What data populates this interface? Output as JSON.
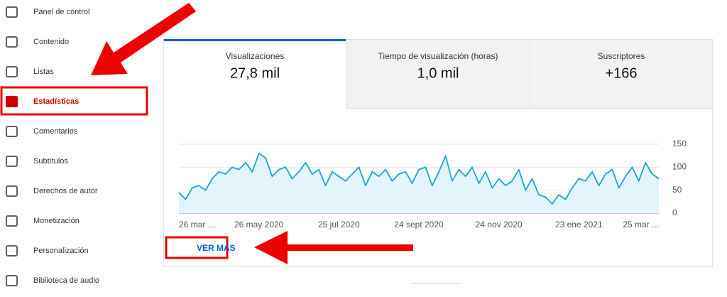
{
  "sidebar": {
    "items": [
      {
        "label": "Panel de control"
      },
      {
        "label": "Contenido"
      },
      {
        "label": "Listas"
      },
      {
        "label": "Estadísticas"
      },
      {
        "label": "Comentarios"
      },
      {
        "label": "Subtítulos"
      },
      {
        "label": "Derechos de autor"
      },
      {
        "label": "Monetización"
      },
      {
        "label": "Personalización"
      },
      {
        "label": "Biblioteca de audio"
      }
    ],
    "active": 3
  },
  "tabs": [
    {
      "label": "Visualizaciones",
      "value": "27,8 mil"
    },
    {
      "label": "Tiempo de visualización (horas)",
      "value": "1,0 mil"
    },
    {
      "label": "Suscriptores",
      "value": "+166"
    }
  ],
  "button": "VER MÁS",
  "chart_data": {
    "type": "line",
    "categories": [
      "26 mar ...",
      null,
      null,
      null,
      null,
      null,
      null,
      null,
      null,
      null,
      null,
      null,
      "26 may 2020",
      null,
      null,
      null,
      null,
      null,
      null,
      null,
      null,
      null,
      null,
      null,
      "25 jul 2020",
      null,
      null,
      null,
      null,
      null,
      null,
      null,
      null,
      null,
      null,
      null,
      "24 sept 2020",
      null,
      null,
      null,
      null,
      null,
      null,
      null,
      null,
      null,
      null,
      null,
      "24 nov 2020",
      null,
      null,
      null,
      null,
      null,
      null,
      null,
      null,
      null,
      null,
      null,
      "23 ene 2021",
      null,
      null,
      null,
      null,
      null,
      null,
      null,
      null,
      null,
      null,
      null,
      "25 mar ..."
    ],
    "series": [
      {
        "color": "#1ba3d2",
        "values": [
          45,
          30,
          55,
          60,
          50,
          75,
          90,
          85,
          100,
          95,
          110,
          90,
          130,
          120,
          80,
          95,
          100,
          75,
          90,
          110,
          85,
          95,
          60,
          90,
          80,
          70,
          85,
          100,
          60,
          90,
          80,
          95,
          70,
          85,
          90,
          65,
          95,
          100,
          60,
          90,
          125,
          70,
          95,
          80,
          100,
          65,
          90,
          55,
          75,
          60,
          70,
          95,
          50,
          75,
          40,
          35,
          20,
          40,
          30,
          55,
          75,
          70,
          90,
          60,
          85,
          95,
          55,
          80,
          100,
          70,
          110,
          85,
          75
        ]
      }
    ],
    "ylim": [
      0,
      150
    ],
    "yticks": [
      0,
      50,
      100,
      150
    ],
    "grid": true,
    "area_color": "#e4f4fb"
  }
}
